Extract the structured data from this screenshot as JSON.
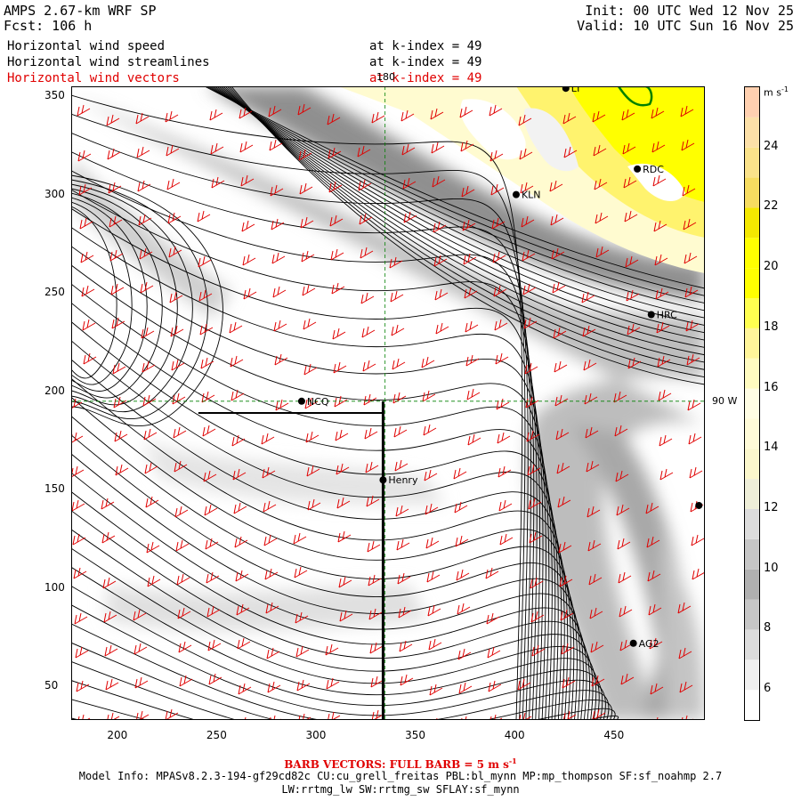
{
  "header": {
    "model": "AMPS 2.67-km WRF SP",
    "forecast": "Fcst:  106 h",
    "init": "Init: 00 UTC Wed 12 Nov 25",
    "valid": "Valid: 10 UTC Sun 16 Nov 25"
  },
  "fields": [
    {
      "name": "Horizontal wind speed",
      "level": "at k-index =  49",
      "color": "#000000"
    },
    {
      "name": "Horizontal wind streamlines",
      "level": "at k-index =  49",
      "color": "#000000"
    },
    {
      "name": "Horizontal wind vectors",
      "level": "at k-index =  49",
      "color": "#e00000"
    }
  ],
  "axes": {
    "x_ticks": [
      "200",
      "250",
      "300",
      "350",
      "400",
      "450"
    ],
    "y_ticks": [
      "350",
      "300",
      "250",
      "200",
      "150",
      "100",
      "50"
    ],
    "x_range": [
      177,
      496
    ],
    "y_range": [
      33,
      355
    ]
  },
  "map_labels": {
    "lon_180": "180",
    "lon_90w": "90 W"
  },
  "stations": [
    {
      "id": "NCQ",
      "x": 293,
      "y": 195
    },
    {
      "id": "Henry",
      "x": 334,
      "y": 155
    },
    {
      "id": "KLN",
      "x": 401,
      "y": 300
    },
    {
      "id": "RDC",
      "x": 462,
      "y": 313
    },
    {
      "id": "HRC",
      "x": 469,
      "y": 239
    },
    {
      "id": "AG2",
      "x": 460,
      "y": 72
    },
    {
      "id": "LT",
      "x": 426,
      "y": 354
    },
    {
      "id": "",
      "x": 493,
      "y": 142
    }
  ],
  "colorbar": {
    "unit": "m s",
    "unit_exp": "-1",
    "ticks": [
      "24",
      "22",
      "20",
      "18",
      "16",
      "14",
      "12",
      "10",
      "8",
      "6"
    ],
    "range": [
      5,
      26
    ],
    "colors": {
      "low": "#ffffff",
      "gray": "#9a9a9a",
      "pale_yellow": "#fffbd0",
      "yellow": "#ffff00",
      "peach": "#ffd0a0"
    }
  },
  "footer": {
    "barb_label": "BARB VECTORS:  FULL BARB = 5 m s",
    "barb_exp": "-1",
    "model_info_1": "Model Info: MPASv8.2.3-194-gf29cd82c CU:cu_grell_freitas PBL:bl_mynn MP:mp_thompson SF:sf_noahmp 2.7",
    "model_info_2": "LW:rrtmg_lw SW:rrtmg_sw SFLAY:sf_mynn"
  }
}
